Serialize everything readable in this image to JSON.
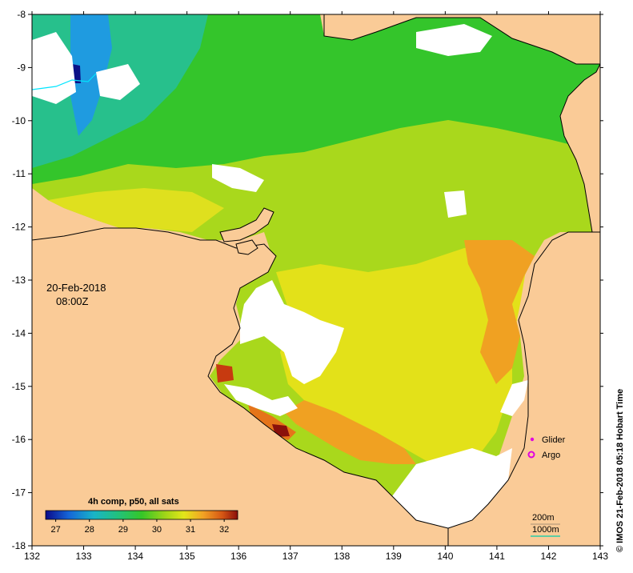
{
  "map": {
    "date": "20-Feb-2018",
    "time": "08:00Z",
    "credit": "© IMOS 21-Feb-2018 05:18 Hobart Time",
    "colorbar": {
      "title": "4h comp, p50, all sats",
      "ticks": [
        "27",
        "28",
        "29",
        "30",
        "31",
        "32"
      ],
      "range": [
        26.7,
        32.4
      ]
    },
    "legend": {
      "glider": "Glider",
      "argo": "Argo",
      "depth_200": "200m",
      "depth_1000": "1000m"
    },
    "x_ticks": [
      "132",
      "133",
      "134",
      "135",
      "136",
      "137",
      "138",
      "139",
      "140",
      "141",
      "142",
      "143"
    ],
    "y_ticks": [
      "-8",
      "-9",
      "-10",
      "-11",
      "-12",
      "-13",
      "-14",
      "-15",
      "-16",
      "-17",
      "-18"
    ],
    "colors": {
      "land": "#facb97",
      "cloud": "#ffffff",
      "glider": "#e000e0",
      "argo": "#e000e0",
      "depth_1000": "#00ccaa"
    }
  }
}
